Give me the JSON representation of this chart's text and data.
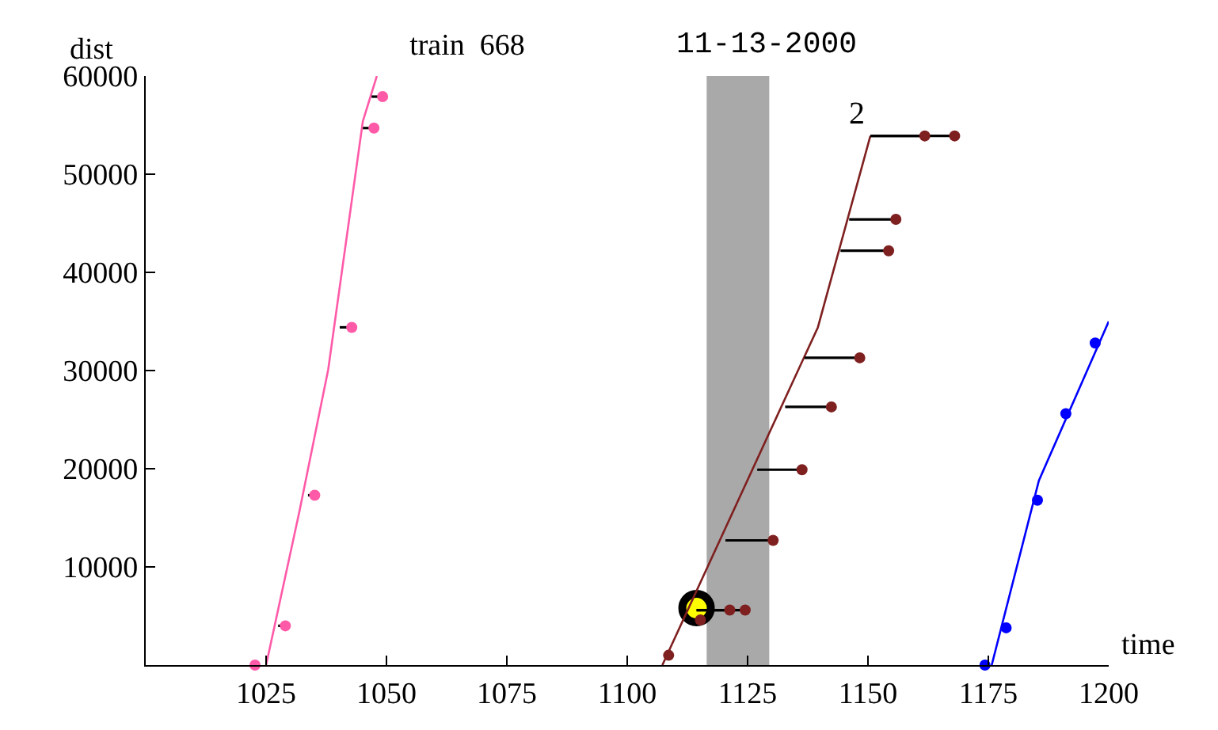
{
  "chart_data": {
    "type": "line",
    "title": "train  668",
    "subtitle": "11-13-2000",
    "xlabel": "time",
    "ylabel": "dist",
    "xlim": [
      1000,
      1200
    ],
    "xticks": [
      1025,
      1050,
      1075,
      1100,
      1125,
      1150,
      1175,
      1200
    ],
    "ylim": [
      0,
      60000
    ],
    "yticks": [
      10000,
      20000,
      30000,
      40000,
      50000,
      60000
    ],
    "grid": false,
    "bands": [
      {
        "axis": "x",
        "from": 1116.5,
        "to": 1129.5,
        "color": "#a9a9a9"
      }
    ],
    "annotations": [
      "2"
    ],
    "series": [
      {
        "color": "#ff5aa8",
        "x": [
          1025,
          1031.9,
          1037.9,
          1045.1,
          1048
        ],
        "values": [
          0,
          15600,
          30100,
          55400,
          60000
        ]
      },
      {
        "type": "scatter",
        "color": "#ff5aa8",
        "marker": "circle",
        "x": [
          1022.7,
          1029.0,
          1035.1,
          1042.8,
          1047.4,
          1049.2
        ],
        "values": [
          0,
          4000,
          17300,
          34400,
          54700,
          57900
        ],
        "xerrors": [
          null,
          [
            1027.5,
            1029.0
          ],
          [
            1033.7,
            1035.1
          ],
          [
            1040.3,
            1042.8
          ],
          [
            1045.1,
            1047.4
          ],
          [
            1046.9,
            1049.2
          ]
        ]
      },
      {
        "type": "scatter",
        "color": "#ffff00",
        "marker": "circle",
        "x": [
          1114.4
        ],
        "values": [
          5800
        ]
      },
      {
        "color": "#7f2020",
        "x": [
          1107.3,
          1139.6,
          1150.5
        ],
        "values": [
          0,
          34400,
          53900
        ]
      },
      {
        "type": "scatter",
        "color": "#7f2020",
        "marker": "circle",
        "x": [
          1108.6,
          1115.2,
          1121.3,
          1124.5,
          1130.3,
          1136.3,
          1142.4,
          1148.3,
          1154.3,
          1155.8,
          1161.8,
          1168.0
        ],
        "values": [
          1000,
          4600,
          5600,
          5600,
          12700,
          19900,
          26300,
          31300,
          42200,
          45400,
          53900,
          53900
        ],
        "xerrors": [
          null,
          null,
          [
            1114.4,
            1121.3
          ],
          [
            1114.4,
            1124.5
          ],
          [
            1120.4,
            1130.3
          ],
          [
            1127.0,
            1136.3
          ],
          [
            1132.8,
            1142.4
          ],
          [
            1136.8,
            1148.3
          ],
          [
            1144.3,
            1154.3
          ],
          [
            1146.1,
            1155.8
          ],
          [
            1150.5,
            1161.8
          ],
          [
            1150.5,
            1168.0
          ]
        ]
      },
      {
        "color": "#0000ff",
        "x": [
          1175.7,
          1185.5,
          1200
        ],
        "values": [
          0,
          18800,
          35000
        ]
      },
      {
        "type": "scatter",
        "color": "#0000ff",
        "marker": "circle",
        "x": [
          1174.3,
          1178.7,
          1185.2,
          1191.1,
          1197.2
        ],
        "values": [
          0,
          3800,
          16800,
          25600,
          32800
        ]
      }
    ]
  }
}
